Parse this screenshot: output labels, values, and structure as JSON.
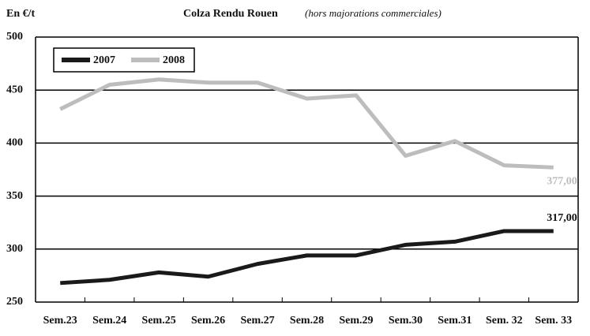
{
  "chart_data": {
    "type": "line",
    "title": "Colza Rendu Rouen",
    "subtitle": "(hors majorations commerciales)",
    "ylabel": "En €/t",
    "categories": [
      "Sem.23",
      "Sem.24",
      "Sem.25",
      "Sem.26",
      "Sem.27",
      "Sem.28",
      "Sem.29",
      "Sem.30",
      "Sem.31",
      "Sem. 32",
      "Sem. 33"
    ],
    "series": [
      {
        "name": "2007",
        "color": "#1a1a1a",
        "values": [
          268,
          271,
          278,
          274,
          286,
          294,
          294,
          304,
          307,
          317,
          317
        ],
        "value_labels": [
          null,
          null,
          null,
          null,
          null,
          null,
          null,
          null,
          null,
          null,
          "317,00"
        ]
      },
      {
        "name": "2008",
        "color": "#bdbdbd",
        "values": [
          432,
          455,
          460,
          457,
          457,
          442,
          445,
          388,
          402,
          379,
          377
        ],
        "value_labels": [
          null,
          null,
          null,
          null,
          null,
          null,
          null,
          null,
          null,
          null,
          "377,00"
        ]
      }
    ],
    "ylim": [
      250,
      500
    ],
    "yticks": [
      250,
      300,
      350,
      400,
      450,
      500
    ],
    "grid": true,
    "legend": "upper left"
  }
}
